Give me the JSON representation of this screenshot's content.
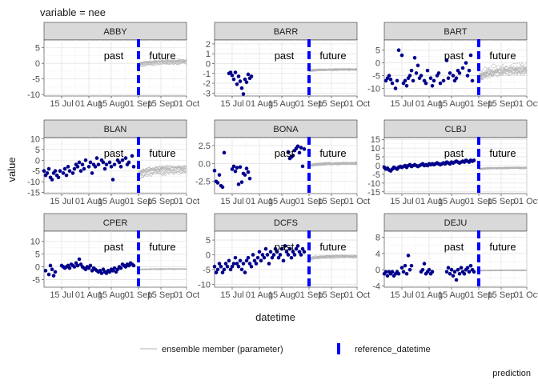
{
  "chart_data": {
    "type": "line",
    "title": "variable = nee",
    "xlabel": "datetime",
    "ylabel": "value",
    "caption": "prediction",
    "x_ticks": [
      "15 Jul",
      "01 Aug",
      "15 Aug",
      "01 Sep",
      "15 Sep",
      "01 Oct"
    ],
    "x_tick_days": [
      0,
      17,
      31,
      48,
      62,
      78
    ],
    "x_range_days": [
      -11,
      78
    ],
    "reference_day": 48,
    "annotations": {
      "past": "past",
      "future": "future"
    },
    "legend": {
      "position": "bottom",
      "ensemble_label": "ensemble member (parameter)",
      "reference_label": "reference_datetime"
    },
    "colors": {
      "observed": "#00008b",
      "ensemble": "#b3b3b3",
      "reference": "#0000ff",
      "strip": "#d9d9d9"
    },
    "grid": true,
    "panels": [
      {
        "site": "ABBY",
        "yticks": [
          -10,
          -5,
          0,
          5
        ],
        "ylim": [
          -10.5,
          7.5
        ],
        "ens_center": 0.5,
        "ens_spread": 1.2,
        "obs_x": [],
        "obs_y": []
      },
      {
        "site": "BARR",
        "yticks": [
          -3,
          -2,
          -1,
          0,
          1,
          2
        ],
        "ylim": [
          -3.3,
          2.4
        ],
        "ens_center": -0.6,
        "ens_spread": 0.15,
        "obs_x": [
          -2,
          -1,
          0,
          1,
          2,
          3,
          4,
          5,
          6,
          7,
          8,
          9,
          10,
          11,
          12
        ],
        "obs_y": [
          -1.0,
          -0.9,
          -1.2,
          -1.6,
          -0.9,
          -2.1,
          -1.3,
          -1.8,
          -2.5,
          -3.1,
          -1.6,
          -1.9,
          -1.1,
          -1.5,
          -1.3
        ]
      },
      {
        "site": "BART",
        "yticks": [
          -10,
          -5,
          0,
          5
        ],
        "ylim": [
          -13,
          9
        ],
        "ens_center": -2,
        "ens_spread": 3.5,
        "obs_x": [
          -10,
          -9,
          -8,
          -7,
          -6,
          -4,
          -3,
          -2,
          0,
          1,
          2,
          3,
          4,
          5,
          6,
          7,
          8,
          9,
          10,
          11,
          12,
          14,
          15,
          16,
          18,
          19,
          20,
          22,
          23,
          24,
          26,
          28,
          29,
          30,
          32,
          33,
          34,
          35,
          36,
          38,
          40,
          41,
          42,
          43,
          44
        ],
        "obs_y": [
          -7,
          -6,
          -5,
          -6.5,
          -8,
          -10,
          -7,
          5,
          3,
          -8,
          -7,
          -9,
          -6,
          -5,
          -3,
          -7,
          2,
          -4,
          -1,
          -6,
          -5,
          -7,
          -8,
          -3,
          -6,
          -9,
          -7,
          -5,
          -4,
          -8,
          -7,
          1,
          -6,
          -4,
          -5,
          -7,
          -6,
          -3,
          -4,
          -2,
          0,
          -5,
          -3,
          3,
          -7
        ]
      },
      {
        "site": "BLAN",
        "yticks": [
          -15,
          -10,
          -5,
          0,
          5,
          10
        ],
        "ylim": [
          -15.5,
          10.5
        ],
        "ens_center": -4.5,
        "ens_spread": 3,
        "obs_x": [
          -11,
          -10,
          -9,
          -8,
          -7,
          -6,
          -5,
          -4,
          -3,
          -2,
          -1,
          1,
          2,
          3,
          4,
          5,
          7,
          8,
          9,
          10,
          11,
          12,
          13,
          14,
          15,
          17,
          18,
          19,
          20,
          21,
          22,
          23,
          25,
          26,
          27,
          28,
          30,
          31,
          32,
          33,
          35,
          36,
          37,
          38,
          40,
          41,
          42,
          44,
          45
        ],
        "obs_y": [
          -5,
          -7,
          -6,
          -4,
          -8,
          -9,
          -6,
          -5,
          -7,
          -8,
          -5,
          -6,
          -4,
          -7,
          -3,
          -5,
          -6,
          -4,
          -2,
          -3,
          -1,
          -5,
          -2,
          -4,
          0,
          -3,
          -1,
          -6,
          -2,
          -3,
          1,
          -2,
          0,
          -1,
          -4,
          -2,
          -1,
          -3,
          -9,
          -2,
          0,
          -1,
          -3,
          0,
          1,
          -2,
          -1,
          2,
          -3
        ]
      },
      {
        "site": "BONA",
        "yticks": [
          -2.5,
          0.0,
          2.5
        ],
        "ylim": [
          -4.2,
          3.6
        ],
        "ens_center": 0,
        "ens_spread": 0.35,
        "obs_x": [
          -11,
          -10,
          -9,
          -8,
          -7,
          -6,
          -5,
          0,
          1,
          2,
          3,
          4,
          5,
          6,
          7,
          8,
          9,
          10,
          11,
          35,
          36,
          37,
          38,
          39,
          40,
          41,
          42,
          43,
          44,
          45
        ],
        "obs_y": [
          -1.0,
          -2.5,
          -2.7,
          -1.6,
          -3.1,
          -3.3,
          1.5,
          -0.8,
          -0.4,
          -1.1,
          -0.6,
          -2.9,
          -0.5,
          -2.6,
          -1.4,
          -1.6,
          -0.7,
          -1.2,
          -2.1,
          1.6,
          0.7,
          0.9,
          1.1,
          1.8,
          2.1,
          2.4,
          1.5,
          2.2,
          -0.4,
          2.0
        ]
      },
      {
        "site": "CLBJ",
        "yticks": [
          -15,
          -10,
          -5,
          0,
          5,
          10,
          15
        ],
        "ylim": [
          -16,
          16
        ],
        "ens_center": -1.2,
        "ens_spread": 0.8,
        "obs_x": [
          -11,
          -10,
          -9,
          -8,
          -7,
          -6,
          -5,
          -4,
          -3,
          -2,
          -1,
          0,
          1,
          2,
          3,
          4,
          5,
          6,
          7,
          8,
          9,
          10,
          11,
          12,
          13,
          14,
          15,
          16,
          17,
          18,
          19,
          20,
          21,
          22,
          23,
          24,
          25,
          26,
          27,
          28,
          29,
          30,
          31,
          32,
          33,
          34,
          35,
          36,
          37,
          38,
          39,
          40,
          41,
          42,
          43,
          44,
          45
        ],
        "obs_y": [
          -1,
          -2,
          -1.5,
          -2.5,
          -3,
          -2,
          -1,
          -1.5,
          -2,
          -1,
          -0.5,
          -1,
          -0.5,
          0,
          -1,
          0,
          0.5,
          -0.5,
          0,
          0.5,
          0,
          -0.5,
          0,
          0.5,
          1,
          0,
          0.5,
          0,
          1,
          0.5,
          1,
          0.5,
          1,
          1.5,
          1,
          0.5,
          1,
          1.5,
          1,
          2,
          1.5,
          1,
          2,
          1.5,
          2,
          2.5,
          2,
          1.5,
          2,
          2.5,
          2,
          3,
          2.5,
          2,
          3,
          2.5,
          3
        ]
      },
      {
        "site": "CPER",
        "yticks": [
          -5,
          0,
          5,
          10
        ],
        "ylim": [
          -8,
          14
        ],
        "ens_center": -0.8,
        "ens_spread": 0.3,
        "obs_x": [
          -10,
          -8,
          -7,
          -6,
          -5,
          -4,
          0,
          1,
          2,
          3,
          4,
          5,
          6,
          7,
          8,
          9,
          10,
          11,
          12,
          13,
          14,
          15,
          16,
          17,
          18,
          19,
          20,
          21,
          22,
          23,
          24,
          25,
          26,
          27,
          28,
          29,
          30,
          31,
          32,
          33,
          34,
          35,
          36,
          37,
          38,
          39,
          40,
          41,
          42,
          43,
          44,
          45
        ],
        "obs_y": [
          -1.5,
          -3,
          0.5,
          -1,
          -3.5,
          -2,
          0.5,
          0,
          -0.5,
          0,
          0.5,
          -0.5,
          1,
          0.5,
          0,
          1.5,
          0.5,
          3,
          1,
          0,
          -0.5,
          -1,
          0,
          -0.5,
          0.5,
          -1.5,
          -0.5,
          -1,
          -1.5,
          -2,
          -1.5,
          -2.5,
          -1,
          -2,
          -2.5,
          -1.5,
          -2,
          -1,
          -1.5,
          -0.5,
          -2,
          -1,
          0,
          -0.5,
          1,
          0.5,
          0,
          1,
          0.5,
          1.5,
          1,
          0.5
        ]
      },
      {
        "site": "DCFS",
        "yticks": [
          -10,
          -5,
          0,
          5
        ],
        "ylim": [
          -11,
          8
        ],
        "ens_center": -0.6,
        "ens_spread": 0.9,
        "obs_x": [
          -11,
          -10,
          -9,
          -8,
          -7,
          -6,
          -5,
          -4,
          -3,
          -2,
          -1,
          0,
          1,
          2,
          3,
          4,
          5,
          6,
          7,
          8,
          9,
          10,
          11,
          12,
          13,
          14,
          15,
          16,
          17,
          18,
          19,
          20,
          21,
          22,
          23,
          24,
          25,
          26,
          27,
          28,
          29,
          30,
          31,
          32,
          33,
          34,
          35,
          36,
          37,
          38,
          39,
          40,
          41,
          42,
          43,
          44,
          45
        ],
        "obs_y": [
          -4,
          -6,
          -5,
          -3,
          -4,
          -6,
          -5,
          -3,
          -4,
          -2,
          -5,
          -4,
          -3,
          -1,
          -3,
          -4,
          -2,
          -5,
          -3,
          -6,
          -2,
          -1,
          -3,
          -4,
          0,
          -2,
          -3,
          -1,
          1,
          -2,
          0,
          -1,
          2,
          0,
          -3,
          1,
          -1,
          0,
          2,
          1,
          -1,
          0,
          2,
          -2,
          3,
          1,
          0,
          2,
          -1,
          1,
          0,
          2,
          3,
          1,
          0,
          2,
          1
        ]
      },
      {
        "site": "DEJU",
        "yticks": [
          -4,
          0,
          4,
          8
        ],
        "ylim": [
          -4.3,
          9.5
        ],
        "ens_center": -0.15,
        "ens_spread": 0.15,
        "obs_x": [
          -11,
          -10,
          -9,
          -8,
          -7,
          -6,
          -5,
          -4,
          -3,
          -2,
          0,
          1,
          2,
          3,
          4,
          5,
          6,
          12,
          13,
          14,
          15,
          16,
          17,
          18,
          19,
          28,
          29,
          30,
          31,
          32,
          33,
          34,
          35,
          36,
          37,
          38,
          39,
          40,
          41,
          42,
          43,
          44,
          45
        ],
        "obs_y": [
          -1,
          -0.5,
          -1.5,
          -0.5,
          -1,
          -0.5,
          -1.5,
          -1,
          -0.5,
          -1,
          0.5,
          -0.5,
          1,
          -1,
          3.5,
          0,
          1,
          -0.5,
          0,
          1.5,
          -1,
          -0.5,
          0,
          -1,
          -0.5,
          -0.5,
          0.5,
          -1,
          0,
          -1.5,
          -0.5,
          -2.5,
          0,
          -1,
          0.5,
          -0.5,
          -1,
          0,
          0.5,
          -0.5,
          1,
          0,
          -0.5
        ]
      }
    ]
  }
}
